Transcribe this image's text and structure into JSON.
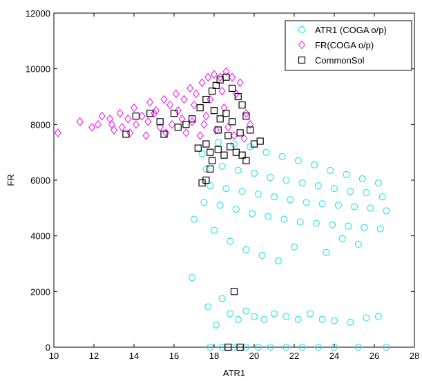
{
  "chart_data": {
    "type": "scatter",
    "title": "",
    "xlabel": "ATR1",
    "ylabel": "FR",
    "xlim": [
      10,
      28
    ],
    "ylim": [
      0,
      12000
    ],
    "xticks": [
      10,
      12,
      14,
      16,
      18,
      20,
      22,
      24,
      26,
      28
    ],
    "yticks": [
      0,
      2000,
      4000,
      6000,
      8000,
      10000,
      12000
    ],
    "grid": false,
    "legend_position": "top-right",
    "series": [
      {
        "name": "ATR1 (COGA o/p)",
        "marker": "circle",
        "color": "#00e5ee",
        "points": [
          [
            17.4,
            6950
          ],
          [
            18.2,
            7350
          ],
          [
            19.0,
            7300
          ],
          [
            19.8,
            7200
          ],
          [
            20.6,
            7000
          ],
          [
            21.4,
            6850
          ],
          [
            22.2,
            6700
          ],
          [
            23.0,
            6550
          ],
          [
            23.8,
            6350
          ],
          [
            24.6,
            6200
          ],
          [
            25.4,
            6050
          ],
          [
            26.2,
            5900
          ],
          [
            17.6,
            6400
          ],
          [
            18.4,
            6500
          ],
          [
            19.2,
            6350
          ],
          [
            20.0,
            6250
          ],
          [
            20.8,
            6100
          ],
          [
            21.6,
            6000
          ],
          [
            22.4,
            5900
          ],
          [
            23.2,
            5800
          ],
          [
            24.0,
            5700
          ],
          [
            24.8,
            5600
          ],
          [
            25.6,
            5550
          ],
          [
            26.4,
            5400
          ],
          [
            17.8,
            5800
          ],
          [
            18.6,
            5700
          ],
          [
            19.4,
            5600
          ],
          [
            20.2,
            5500
          ],
          [
            21.0,
            5400
          ],
          [
            21.8,
            5300
          ],
          [
            22.6,
            5200
          ],
          [
            23.4,
            5150
          ],
          [
            24.2,
            5100
          ],
          [
            25.0,
            5050
          ],
          [
            25.8,
            5000
          ],
          [
            26.6,
            4900
          ],
          [
            17.5,
            5200
          ],
          [
            18.3,
            5100
          ],
          [
            19.1,
            4950
          ],
          [
            19.9,
            4800
          ],
          [
            20.7,
            4700
          ],
          [
            21.5,
            4600
          ],
          [
            22.3,
            4500
          ],
          [
            23.1,
            4450
          ],
          [
            23.9,
            4400
          ],
          [
            24.7,
            4350
          ],
          [
            25.5,
            4300
          ],
          [
            26.3,
            4250
          ],
          [
            17.0,
            4600
          ],
          [
            18.0,
            4200
          ],
          [
            18.8,
            3800
          ],
          [
            19.6,
            3500
          ],
          [
            20.4,
            3300
          ],
          [
            21.2,
            3100
          ],
          [
            22.0,
            3600
          ],
          [
            23.6,
            3400
          ],
          [
            24.4,
            3900
          ],
          [
            25.2,
            3700
          ],
          [
            16.9,
            2500
          ],
          [
            17.7,
            1450
          ],
          [
            18.1,
            800
          ],
          [
            18.4,
            1750
          ],
          [
            18.8,
            1200
          ],
          [
            19.2,
            1000
          ],
          [
            19.6,
            1300
          ],
          [
            20.0,
            1100
          ],
          [
            20.5,
            1000
          ],
          [
            21.0,
            1200
          ],
          [
            21.6,
            1100
          ],
          [
            22.2,
            1000
          ],
          [
            22.8,
            1200
          ],
          [
            23.4,
            1000
          ],
          [
            24.0,
            950
          ],
          [
            24.8,
            900
          ],
          [
            25.6,
            1050
          ],
          [
            26.2,
            1100
          ],
          [
            17.8,
            0
          ],
          [
            18.4,
            0
          ],
          [
            19.0,
            0
          ],
          [
            19.6,
            0
          ],
          [
            20.2,
            0
          ],
          [
            20.8,
            0
          ],
          [
            21.6,
            0
          ],
          [
            22.4,
            0
          ],
          [
            23.2,
            0
          ],
          [
            24.0,
            0
          ],
          [
            25.2,
            0
          ],
          [
            26.6,
            0
          ]
        ]
      },
      {
        "name": "FR(COGA o/p)",
        "marker": "diamond",
        "color": "#ff00ff",
        "points": [
          [
            10.2,
            7700
          ],
          [
            11.3,
            8100
          ],
          [
            11.9,
            7900
          ],
          [
            12.4,
            8300
          ],
          [
            12.9,
            8000
          ],
          [
            13.3,
            8400
          ],
          [
            13.7,
            8200
          ],
          [
            14.0,
            8600
          ],
          [
            14.4,
            8300
          ],
          [
            14.8,
            8800
          ],
          [
            15.1,
            8500
          ],
          [
            15.5,
            8900
          ],
          [
            15.8,
            8700
          ],
          [
            16.1,
            9100
          ],
          [
            16.5,
            8900
          ],
          [
            16.8,
            9300
          ],
          [
            17.1,
            9100
          ],
          [
            17.4,
            9500
          ],
          [
            17.7,
            9700
          ],
          [
            18.0,
            9800
          ],
          [
            18.3,
            9700
          ],
          [
            18.6,
            9900
          ],
          [
            18.9,
            9700
          ],
          [
            19.3,
            9500
          ],
          [
            12.2,
            8000
          ],
          [
            12.8,
            8200
          ],
          [
            13.4,
            7900
          ],
          [
            14.1,
            8000
          ],
          [
            14.7,
            8100
          ],
          [
            15.3,
            7900
          ],
          [
            15.9,
            8000
          ],
          [
            16.4,
            8200
          ],
          [
            16.9,
            8100
          ],
          [
            17.5,
            8000
          ],
          [
            18.1,
            7800
          ],
          [
            18.7,
            7900
          ],
          [
            13.0,
            7800
          ],
          [
            13.8,
            7700
          ],
          [
            14.6,
            7600
          ],
          [
            15.6,
            7700
          ],
          [
            16.6,
            7700
          ],
          [
            17.3,
            7600
          ],
          [
            19.0,
            7600
          ],
          [
            19.5,
            7500
          ],
          [
            15.0,
            8400
          ],
          [
            16.2,
            8500
          ],
          [
            17.0,
            8700
          ],
          [
            17.8,
            8900
          ],
          [
            18.4,
            9200
          ],
          [
            19.1,
            9100
          ],
          [
            19.6,
            8400
          ],
          [
            19.8,
            8000
          ],
          [
            18.5,
            8600
          ],
          [
            17.6,
            8300
          ]
        ]
      },
      {
        "name": "CommonSol",
        "marker": "square",
        "color": "#000000",
        "points": [
          [
            13.6,
            7650
          ],
          [
            14.1,
            8300
          ],
          [
            14.8,
            8400
          ],
          [
            15.3,
            8100
          ],
          [
            15.5,
            7650
          ],
          [
            16.0,
            8400
          ],
          [
            16.2,
            7900
          ],
          [
            16.6,
            8000
          ],
          [
            16.9,
            8200
          ],
          [
            17.3,
            8600
          ],
          [
            17.6,
            8900
          ],
          [
            17.9,
            9200
          ],
          [
            18.1,
            9400
          ],
          [
            18.3,
            9600
          ],
          [
            18.6,
            9700
          ],
          [
            18.9,
            9300
          ],
          [
            19.2,
            9000
          ],
          [
            19.4,
            8700
          ],
          [
            19.6,
            8300
          ],
          [
            19.8,
            7800
          ],
          [
            17.6,
            7300
          ],
          [
            17.8,
            7000
          ],
          [
            17.9,
            6700
          ],
          [
            17.8,
            6400
          ],
          [
            17.6,
            6000
          ],
          [
            17.4,
            5900
          ],
          [
            18.2,
            7100
          ],
          [
            18.5,
            6900
          ],
          [
            18.8,
            7200
          ],
          [
            19.1,
            7000
          ],
          [
            19.4,
            6900
          ],
          [
            19.6,
            6700
          ],
          [
            20.0,
            7300
          ],
          [
            20.3,
            7400
          ],
          [
            18.0,
            8500
          ],
          [
            18.3,
            8200
          ],
          [
            18.6,
            8400
          ],
          [
            18.9,
            8100
          ],
          [
            18.2,
            7800
          ],
          [
            18.7,
            7600
          ],
          [
            19.3,
            7700
          ],
          [
            17.2,
            7150
          ],
          [
            19.0,
            2000
          ],
          [
            19.3,
            0
          ],
          [
            18.7,
            0
          ]
        ]
      }
    ]
  }
}
